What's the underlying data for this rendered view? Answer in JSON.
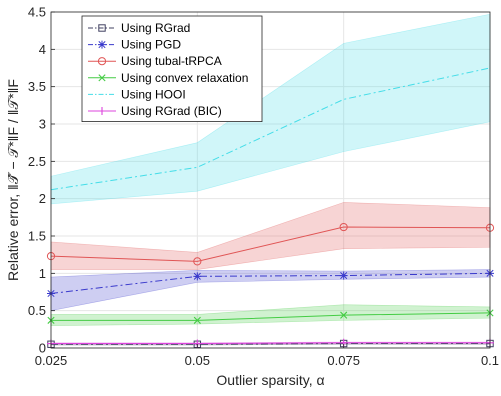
{
  "chart_data": {
    "type": "line",
    "xlabel": "Outlier sparsity, α",
    "ylabel": "Relative error, ‖𝒯̂ − 𝒯*‖F / ‖𝒯*‖F",
    "x": [
      0.025,
      0.05,
      0.075,
      0.1
    ],
    "x_ticks": [
      "0.025",
      "0.05",
      "0.075",
      "0.1"
    ],
    "y_ticks": [
      "0",
      "0.5",
      "1",
      "1.5",
      "2",
      "2.5",
      "3",
      "3.5",
      "4",
      "4.5"
    ],
    "xlim": [
      0.025,
      0.1
    ],
    "ylim": [
      0,
      4.5
    ],
    "grid": true,
    "legend_position": "top-left",
    "series": [
      {
        "name": "Using RGrad",
        "color": "#404060",
        "marker": "square",
        "dash": "dashdot",
        "values": [
          0.05,
          0.05,
          0.06,
          0.06
        ],
        "band_low": [
          0.04,
          0.04,
          0.05,
          0.05
        ],
        "band_high": [
          0.06,
          0.06,
          0.07,
          0.07
        ]
      },
      {
        "name": "Using PGD",
        "color": "#3a3acc",
        "marker": "asterisk",
        "dash": "dashdot",
        "values": [
          0.73,
          0.96,
          0.97,
          1.0
        ],
        "band_low": [
          0.5,
          0.88,
          0.92,
          0.95
        ],
        "band_high": [
          0.95,
          1.04,
          1.03,
          1.05
        ]
      },
      {
        "name": "Using tubal-tRPCA",
        "color": "#e05555",
        "marker": "circle",
        "dash": "solid",
        "values": [
          1.23,
          1.16,
          1.62,
          1.61
        ],
        "band_low": [
          1.05,
          1.05,
          1.33,
          1.35
        ],
        "band_high": [
          1.42,
          1.28,
          1.95,
          1.88
        ]
      },
      {
        "name": "Using convex relaxation",
        "color": "#44cc44",
        "marker": "x",
        "dash": "solid",
        "values": [
          0.37,
          0.37,
          0.44,
          0.47
        ],
        "band_low": [
          0.3,
          0.32,
          0.37,
          0.4
        ],
        "band_high": [
          0.45,
          0.45,
          0.58,
          0.55
        ]
      },
      {
        "name": "Using HOOI",
        "color": "#44dde8",
        "marker": "none",
        "dash": "dashdot",
        "values": [
          2.12,
          2.42,
          3.33,
          3.75
        ],
        "band_low": [
          1.93,
          2.1,
          2.63,
          3.03
        ],
        "band_high": [
          2.3,
          2.75,
          4.08,
          4.47
        ]
      },
      {
        "name": "Using RGrad (BIC)",
        "color": "#dd44dd",
        "marker": "plus",
        "dash": "solid",
        "values": [
          0.06,
          0.06,
          0.07,
          0.07
        ],
        "band_low": [
          0.05,
          0.05,
          0.06,
          0.06
        ],
        "band_high": [
          0.07,
          0.07,
          0.08,
          0.08
        ]
      }
    ]
  }
}
